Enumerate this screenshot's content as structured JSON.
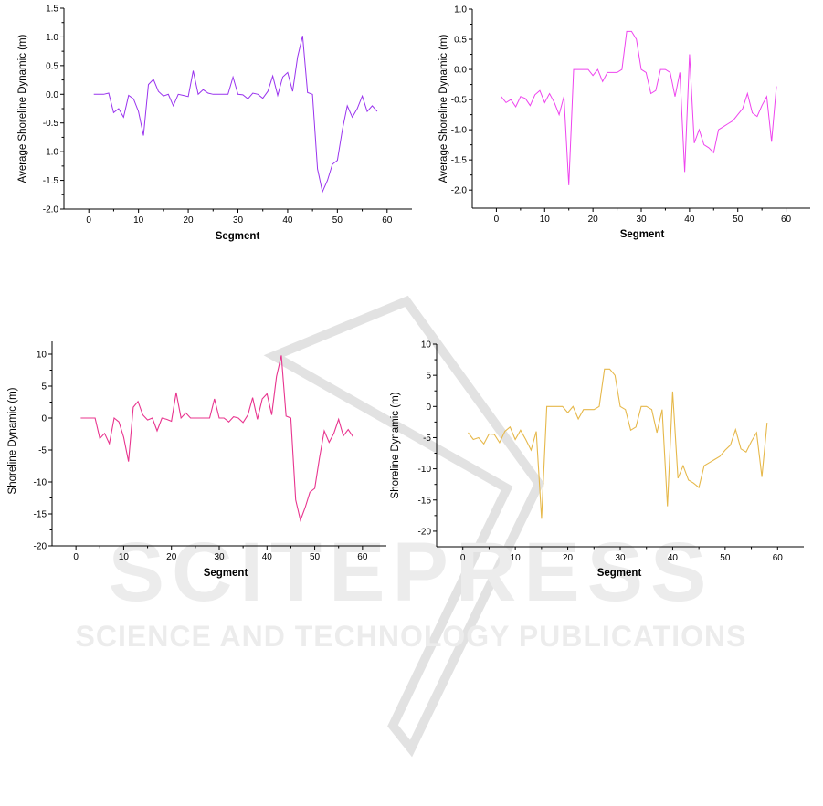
{
  "watermark": {
    "logo_text": "SCITEPRESS",
    "tagline": "SCIENCE AND TECHNOLOGY PUBLICATIONS",
    "color": "#dedede"
  },
  "chart_data": [
    {
      "type": "line",
      "xlabel": "Segment",
      "ylabel": "Average Shoreline Dynamic (m)",
      "xlim": [
        -5,
        65
      ],
      "ylim": [
        -2.0,
        1.5
      ],
      "xticks": [
        0,
        10,
        20,
        30,
        40,
        50,
        60
      ],
      "yticks": [
        -2.0,
        -1.5,
        -1.0,
        -0.5,
        0.0,
        0.5,
        1.0,
        1.5
      ],
      "ytick_decimals": 1,
      "color": "#9933ee",
      "grid": false,
      "series": [
        {
          "x": [
            1,
            2,
            3,
            4,
            5,
            6,
            7,
            8,
            9,
            10,
            11,
            12,
            13,
            14,
            15,
            16,
            17,
            18,
            19,
            20,
            21,
            22,
            23,
            24,
            25,
            26,
            27,
            28,
            29,
            30,
            31,
            32,
            33,
            34,
            35,
            36,
            37,
            38,
            39,
            40,
            41,
            42,
            43,
            44,
            45,
            46,
            47,
            48,
            49,
            50,
            51,
            52,
            53,
            54,
            55,
            56,
            57,
            58
          ],
          "values": [
            0,
            0,
            0,
            0.02,
            -0.32,
            -0.25,
            -0.4,
            -0.02,
            -0.08,
            -0.3,
            -0.72,
            0.17,
            0.26,
            0.05,
            -0.03,
            0,
            -0.2,
            0,
            -0.02,
            -0.04,
            0.41,
            0,
            0.08,
            0.02,
            0,
            0,
            0,
            0,
            0.3,
            0,
            -0.01,
            -0.08,
            0.02,
            0,
            -0.07,
            0.05,
            0.32,
            -0.02,
            0.3,
            0.38,
            0.05,
            0.65,
            1.02,
            0.03,
            0,
            -1.3,
            -1.7,
            -1.5,
            -1.22,
            -1.15,
            -0.62,
            -0.2,
            -0.4,
            -0.25,
            -0.03,
            -0.3,
            -0.2,
            -0.3
          ]
        }
      ]
    },
    {
      "type": "line",
      "xlabel": "Segment",
      "ylabel": "Average Shoreline Dynamic (m)",
      "xlim": [
        -5,
        65
      ],
      "ylim": [
        -2.3,
        1.0
      ],
      "xticks": [
        0,
        10,
        20,
        30,
        40,
        50,
        60
      ],
      "yticks": [
        -2.0,
        -1.5,
        -1.0,
        -0.5,
        0.0,
        0.5,
        1.0
      ],
      "ytick_decimals": 1,
      "color": "#ee44ee",
      "grid": false,
      "series": [
        {
          "x": [
            1,
            2,
            3,
            4,
            5,
            6,
            7,
            8,
            9,
            10,
            11,
            12,
            13,
            14,
            15,
            16,
            17,
            18,
            19,
            20,
            21,
            22,
            23,
            24,
            25,
            26,
            27,
            28,
            29,
            30,
            31,
            32,
            33,
            34,
            35,
            36,
            37,
            38,
            39,
            40,
            41,
            42,
            43,
            44,
            45,
            46,
            47,
            48,
            49,
            50,
            51,
            52,
            53,
            54,
            55,
            56,
            57,
            58
          ],
          "values": [
            -0.45,
            -0.55,
            -0.5,
            -0.62,
            -0.45,
            -0.48,
            -0.6,
            -0.42,
            -0.35,
            -0.55,
            -0.4,
            -0.55,
            -0.75,
            -0.45,
            -1.92,
            0,
            0,
            0,
            0,
            -0.1,
            0,
            -0.2,
            -0.05,
            -0.05,
            -0.05,
            0,
            0.63,
            0.63,
            0.5,
            0,
            -0.05,
            -0.4,
            -0.35,
            0,
            0,
            -0.05,
            -0.45,
            -0.05,
            -1.7,
            0.25,
            -1.22,
            -1.0,
            -1.25,
            -1.3,
            -1.38,
            -1.0,
            -0.95,
            -0.9,
            -0.85,
            -0.75,
            -0.65,
            -0.4,
            -0.72,
            -0.78,
            -0.6,
            -0.45,
            -1.2,
            -0.28
          ]
        }
      ]
    },
    {
      "type": "line",
      "xlabel": "Segment",
      "ylabel": "Shoreline Dynamic (m)",
      "xlim": [
        -5,
        65
      ],
      "ylim": [
        -20,
        12
      ],
      "xticks": [
        0,
        10,
        20,
        30,
        40,
        50,
        60
      ],
      "yticks": [
        -20,
        -15,
        -10,
        -5,
        0,
        5,
        10
      ],
      "ytick_decimals": 0,
      "color": "#e8348e",
      "grid": false,
      "series": [
        {
          "x": [
            1,
            2,
            3,
            4,
            5,
            6,
            7,
            8,
            9,
            10,
            11,
            12,
            13,
            14,
            15,
            16,
            17,
            18,
            19,
            20,
            21,
            22,
            23,
            24,
            25,
            26,
            27,
            28,
            29,
            30,
            31,
            32,
            33,
            34,
            35,
            36,
            37,
            38,
            39,
            40,
            41,
            42,
            43,
            44,
            45,
            46,
            47,
            48,
            49,
            50,
            51,
            52,
            53,
            54,
            55,
            56,
            57,
            58
          ],
          "values": [
            0,
            0,
            0,
            0,
            -3.2,
            -2.4,
            -4,
            0,
            -0.6,
            -3,
            -6.8,
            1.7,
            2.6,
            0.5,
            -0.3,
            0,
            -2,
            0,
            -0.2,
            -0.5,
            4,
            0,
            0.8,
            0,
            0,
            0,
            0,
            0,
            3,
            0,
            0,
            -0.6,
            0.2,
            0,
            -0.7,
            0.5,
            3.2,
            -0.2,
            3,
            3.8,
            0.5,
            6.5,
            9.8,
            0.3,
            0,
            -12.8,
            -16,
            -14,
            -11.6,
            -11,
            -6.2,
            -2,
            -3.8,
            -2.4,
            -0.2,
            -2.8,
            -1.8,
            -2.9
          ]
        }
      ]
    },
    {
      "type": "line",
      "xlabel": "Segment",
      "ylabel": "Shoreline Dynamic (m)",
      "xlim": [
        -5,
        65
      ],
      "ylim": [
        -22.5,
        10
      ],
      "xticks": [
        0,
        10,
        20,
        30,
        40,
        50,
        60
      ],
      "yticks": [
        -20,
        -15,
        -10,
        -5,
        0,
        5,
        10
      ],
      "ytick_decimals": 0,
      "color": "#e6b84a",
      "grid": false,
      "series": [
        {
          "x": [
            1,
            2,
            3,
            4,
            5,
            6,
            7,
            8,
            9,
            10,
            11,
            12,
            13,
            14,
            15,
            16,
            17,
            18,
            19,
            20,
            21,
            22,
            23,
            24,
            25,
            26,
            27,
            28,
            29,
            30,
            31,
            32,
            33,
            34,
            35,
            36,
            37,
            38,
            39,
            40,
            41,
            42,
            43,
            44,
            45,
            46,
            47,
            48,
            49,
            50,
            51,
            52,
            53,
            54,
            55,
            56,
            57,
            58
          ],
          "values": [
            -4.2,
            -5.3,
            -5,
            -6,
            -4.4,
            -4.5,
            -5.8,
            -4,
            -3.3,
            -5.3,
            -3.8,
            -5.3,
            -7,
            -4,
            -18,
            0,
            0,
            0,
            0,
            -1,
            0,
            -2,
            -0.5,
            -0.5,
            -0.5,
            0,
            6,
            6,
            5,
            0,
            -0.5,
            -3.8,
            -3.3,
            0,
            0,
            -0.5,
            -4.2,
            -0.5,
            -16,
            2.4,
            -11.5,
            -9.5,
            -11.8,
            -12.3,
            -13,
            -9.5,
            -9,
            -8.5,
            -8,
            -7,
            -6.2,
            -3.7,
            -6.8,
            -7.3,
            -5.6,
            -4.2,
            -11.3,
            -2.6
          ]
        }
      ]
    }
  ]
}
